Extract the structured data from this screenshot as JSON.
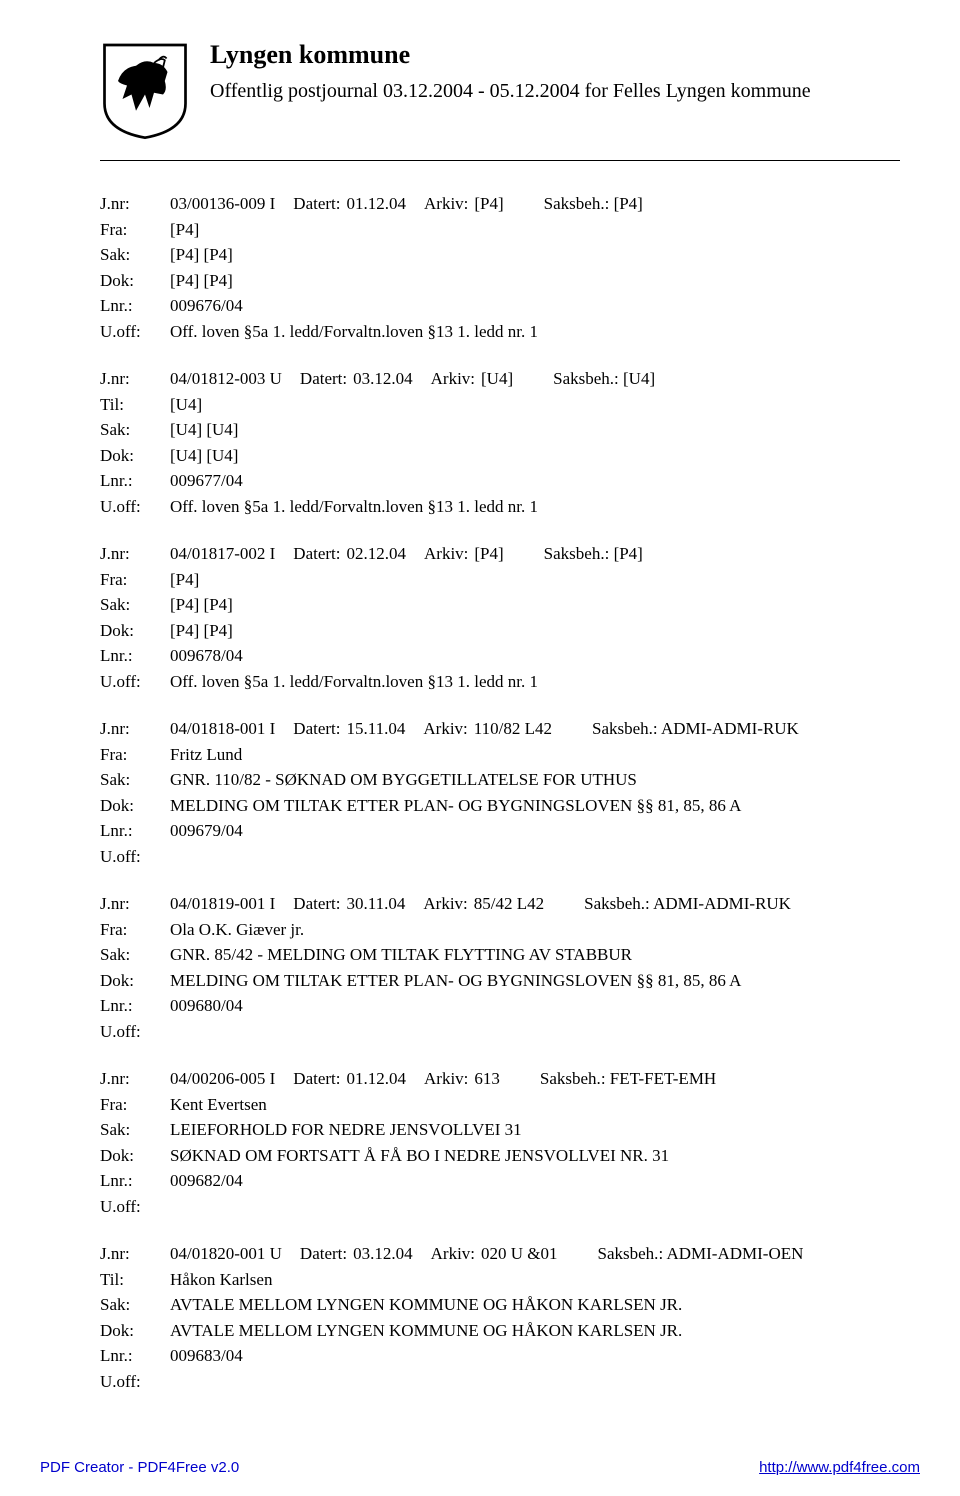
{
  "header": {
    "title": "Lyngen kommune",
    "subtitle": "Offentlig postjournal 03.12.2004 - 05.12.2004 for Felles Lyngen kommune"
  },
  "labels": {
    "jnr": "J.nr:",
    "fra": "Fra:",
    "til": "Til:",
    "sak": "Sak:",
    "dok": "Dok:",
    "lnr": "Lnr.:",
    "uoff": "U.off:",
    "datert": "Datert:",
    "arkiv": "Arkiv:",
    "saksbeh": "Saksbeh."
  },
  "entries": [
    {
      "jnr": "03/00136-009 I",
      "datert": "01.12.04",
      "arkiv": "[P4]",
      "saksbeh": ": [P4]",
      "party_label": "Fra:",
      "party": "[P4]",
      "sak": "[P4] [P4]",
      "dok": "[P4] [P4]",
      "lnr": "009676/04",
      "uoff": "Off. loven §5a 1. ledd/Forvaltn.loven §13 1. ledd nr. 1"
    },
    {
      "jnr": "04/01812-003 U",
      "datert": "03.12.04",
      "arkiv": "[U4]",
      "saksbeh": ": [U4]",
      "party_label": "Til:",
      "party": "[U4]",
      "sak": "[U4] [U4]",
      "dok": "[U4] [U4]",
      "lnr": "009677/04",
      "uoff": "Off. loven §5a 1. ledd/Forvaltn.loven §13 1. ledd nr. 1"
    },
    {
      "jnr": "04/01817-002 I",
      "datert": "02.12.04",
      "arkiv": "[P4]",
      "saksbeh": ": [P4]",
      "party_label": "Fra:",
      "party": "[P4]",
      "sak": "[P4] [P4]",
      "dok": "[P4] [P4]",
      "lnr": "009678/04",
      "uoff": "Off. loven §5a 1. ledd/Forvaltn.loven §13 1. ledd nr. 1"
    },
    {
      "jnr": "04/01818-001 I",
      "datert": "15.11.04",
      "arkiv": "110/82 L42",
      "saksbeh": ": ADMI-ADMI-RUK",
      "party_label": "Fra:",
      "party": "Fritz Lund",
      "sak": "GNR. 110/82 - SØKNAD OM BYGGETILLATELSE FOR UTHUS",
      "dok": "MELDING OM TILTAK ETTER PLAN- OG BYGNINGSLOVEN §§ 81, 85, 86 A",
      "lnr": "009679/04",
      "uoff": ""
    },
    {
      "jnr": "04/01819-001 I",
      "datert": "30.11.04",
      "arkiv": "85/42 L42",
      "saksbeh": ": ADMI-ADMI-RUK",
      "party_label": "Fra:",
      "party": "Ola O.K. Giæver jr.",
      "sak": "GNR. 85/42 - MELDING OM TILTAK FLYTTING AV STABBUR",
      "dok": "MELDING OM TILTAK ETTER PLAN- OG BYGNINGSLOVEN §§ 81, 85, 86 A",
      "lnr": "009680/04",
      "uoff": ""
    },
    {
      "jnr": "04/00206-005 I",
      "datert": "01.12.04",
      "arkiv": "613",
      "saksbeh": ": FET-FET-EMH",
      "party_label": "Fra:",
      "party": "Kent Evertsen",
      "sak": "LEIEFORHOLD FOR NEDRE JENSVOLLVEI 31",
      "dok": "SØKNAD OM FORTSATT Å FÅ BO I NEDRE JENSVOLLVEI NR. 31",
      "lnr": "009682/04",
      "uoff": ""
    },
    {
      "jnr": "04/01820-001 U",
      "datert": "03.12.04",
      "arkiv": "020 U &01",
      "saksbeh": ": ADMI-ADMI-OEN",
      "party_label": "Til:",
      "party": "Håkon Karlsen",
      "sak": "AVTALE MELLOM LYNGEN KOMMUNE OG HÅKON KARLSEN JR.",
      "dok": "AVTALE MELLOM LYNGEN KOMMUNE OG HÅKON KARLSEN JR.",
      "lnr": "009683/04",
      "uoff": ""
    }
  ],
  "footer": {
    "left": "PDF Creator - PDF4Free v2.0",
    "right": "http://www.pdf4free.com"
  },
  "colors": {
    "text": "#000000",
    "background": "#ffffff",
    "link": "#0000cc"
  }
}
